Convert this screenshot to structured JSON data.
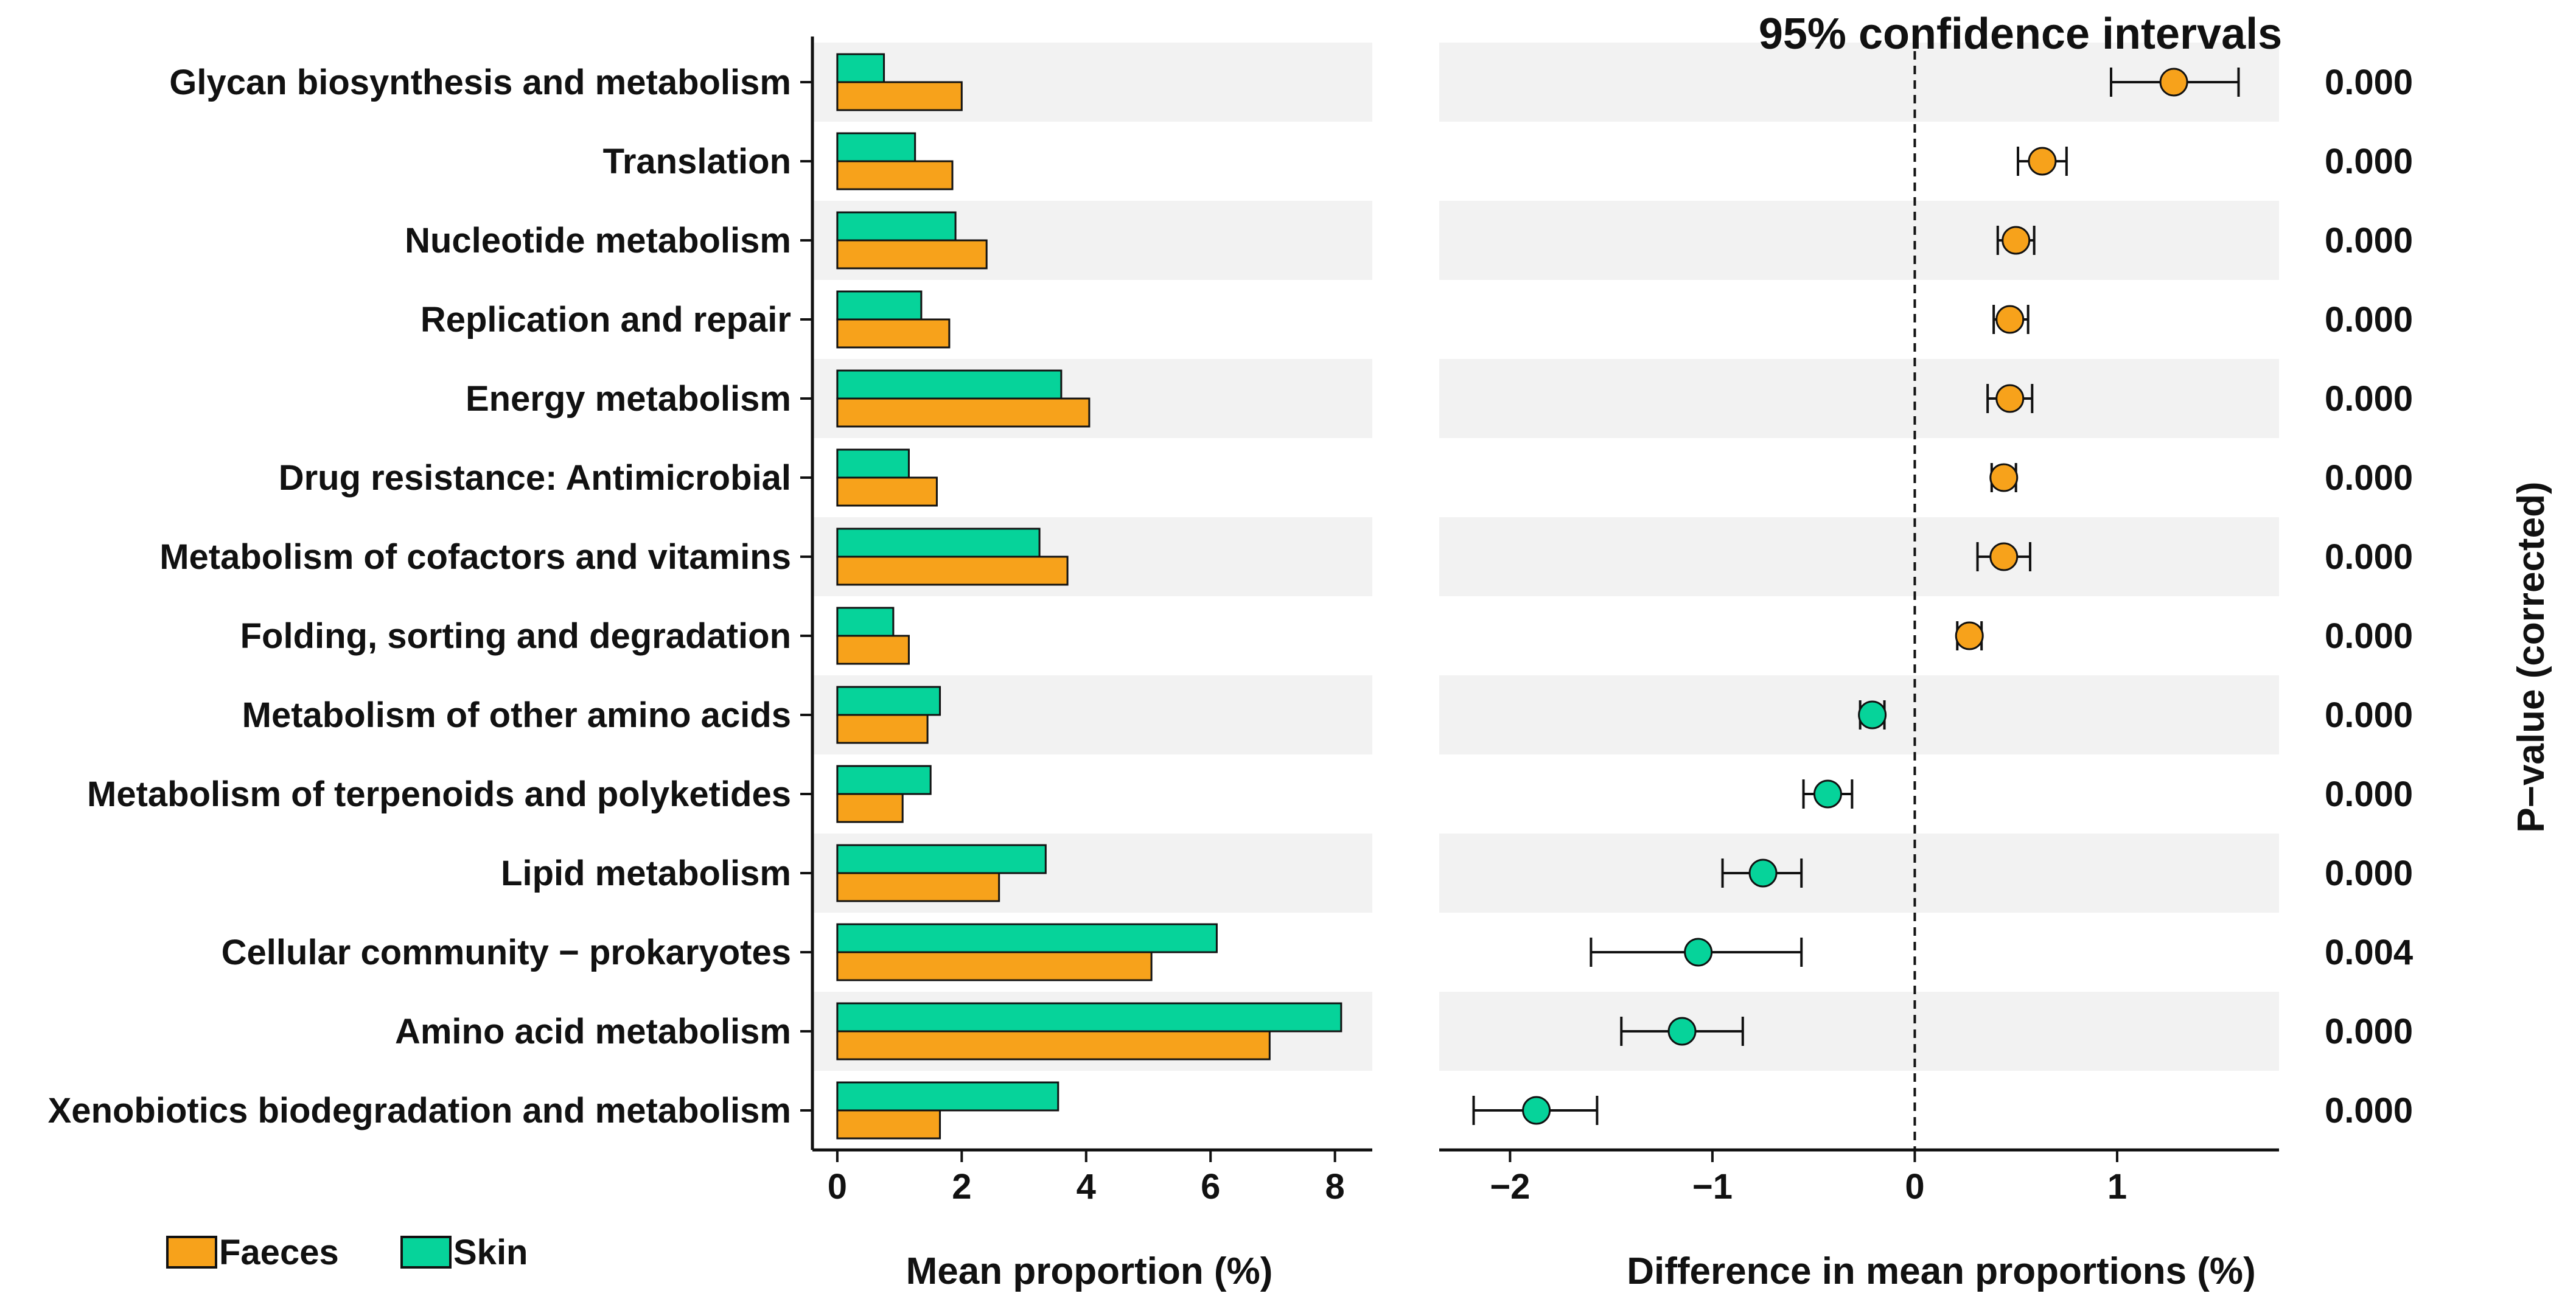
{
  "chart_data": {
    "type": "bar",
    "subtype": "extended-error-bar",
    "title": "95% confidence intervals",
    "categories": [
      "Glycan biosynthesis and metabolism",
      "Translation",
      "Nucleotide metabolism",
      "Replication and repair",
      "Energy metabolism",
      "Drug resistance: Antimicrobial",
      "Metabolism of cofactors and vitamins",
      "Folding, sorting and degradation",
      "Metabolism of other amino acids",
      "Metabolism of terpenoids and polyketides",
      "Lipid metabolism",
      "Cellular community − prokaryotes",
      "Amino acid metabolism",
      "Xenobiotics biodegradation and metabolism"
    ],
    "series": [
      {
        "name": "Skin",
        "color": "#06d39a",
        "values": [
          0.75,
          1.25,
          1.9,
          1.35,
          3.6,
          1.15,
          3.25,
          0.9,
          1.65,
          1.5,
          3.35,
          6.1,
          8.1,
          3.55
        ]
      },
      {
        "name": "Faeces",
        "color": "#f7a21b",
        "values": [
          2.0,
          1.85,
          2.4,
          1.8,
          4.05,
          1.6,
          3.7,
          1.15,
          1.45,
          1.05,
          2.6,
          5.05,
          6.95,
          1.65
        ]
      }
    ],
    "bar_xlim": [
      -0.4,
      8.6
    ],
    "bar_xticks": [
      "0",
      "2",
      "4",
      "6",
      "8"
    ],
    "bar_xlabel": "Mean proportion (%)",
    "ci": {
      "xlabel": "Difference in mean proportions (%)",
      "xlim": [
        -2.35,
        1.8
      ],
      "xticks": [
        {
          "value": -2,
          "label": "−2"
        },
        {
          "value": -1,
          "label": "−1"
        },
        {
          "value": 0,
          "label": "0"
        },
        {
          "value": 1,
          "label": "1"
        }
      ],
      "points": [
        {
          "diff": 1.28,
          "lower": 0.97,
          "upper": 1.6,
          "group": "Faeces"
        },
        {
          "diff": 0.63,
          "lower": 0.51,
          "upper": 0.75,
          "group": "Faeces"
        },
        {
          "diff": 0.5,
          "lower": 0.41,
          "upper": 0.59,
          "group": "Faeces"
        },
        {
          "diff": 0.47,
          "lower": 0.39,
          "upper": 0.56,
          "group": "Faeces"
        },
        {
          "diff": 0.47,
          "lower": 0.36,
          "upper": 0.58,
          "group": "Faeces"
        },
        {
          "diff": 0.44,
          "lower": 0.38,
          "upper": 0.5,
          "group": "Faeces"
        },
        {
          "diff": 0.44,
          "lower": 0.31,
          "upper": 0.57,
          "group": "Faeces"
        },
        {
          "diff": 0.27,
          "lower": 0.21,
          "upper": 0.33,
          "group": "Faeces"
        },
        {
          "diff": -0.21,
          "lower": -0.27,
          "upper": -0.15,
          "group": "Skin"
        },
        {
          "diff": -0.43,
          "lower": -0.55,
          "upper": -0.31,
          "group": "Skin"
        },
        {
          "diff": -0.75,
          "lower": -0.95,
          "upper": -0.56,
          "group": "Skin"
        },
        {
          "diff": -1.07,
          "lower": -1.6,
          "upper": -0.56,
          "group": "Skin"
        },
        {
          "diff": -1.15,
          "lower": -1.45,
          "upper": -0.85,
          "group": "Skin"
        },
        {
          "diff": -1.87,
          "lower": -2.18,
          "upper": -1.57,
          "group": "Skin"
        }
      ]
    },
    "pvalues": [
      "0.000",
      "0.000",
      "0.000",
      "0.000",
      "0.000",
      "0.000",
      "0.000",
      "0.000",
      "0.000",
      "0.000",
      "0.000",
      "0.004",
      "0.000",
      "0.000"
    ],
    "pvalue_label": "P−value (corrected)",
    "legend": [
      {
        "name": "Faeces",
        "color": "#f7a21b"
      },
      {
        "name": "Skin",
        "color": "#06d39a"
      }
    ],
    "legend_position": "bottom-left"
  }
}
